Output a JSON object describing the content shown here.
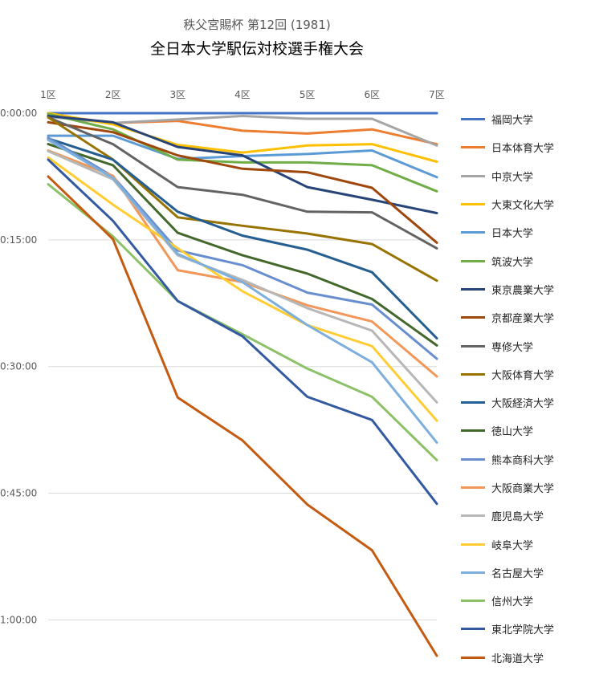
{
  "chart_data": {
    "type": "line",
    "title": "全日本大学駅伝対校選手権大会",
    "subtitle": "秩父宮賜杯 第12回 (1981)",
    "x": [
      "1区",
      "2区",
      "3区",
      "4区",
      "5区",
      "6区",
      "7区"
    ],
    "y_ticks": [
      "0:00:00",
      "0:15:00",
      "0:30:00",
      "0:45:00",
      "1:00:00"
    ],
    "ylim_seconds": [
      0,
      3900
    ],
    "y_inverted": true,
    "grid": true,
    "legend": "right",
    "series": [
      {
        "name": "福岡大学",
        "color": "#4472C4",
        "values": [
          0,
          0,
          0,
          0,
          0,
          0,
          0
        ]
      },
      {
        "name": "日本体育大学",
        "color": "#ED7D31",
        "values": [
          8,
          70,
          55,
          125,
          145,
          115,
          220
        ]
      },
      {
        "name": "中京大学",
        "color": "#A5A5A5",
        "values": [
          25,
          70,
          45,
          20,
          40,
          40,
          230
        ]
      },
      {
        "name": "大東文化大学",
        "color": "#FFC000",
        "values": [
          0,
          80,
          225,
          280,
          230,
          220,
          345
        ]
      },
      {
        "name": "日本大学",
        "color": "#5B9BD5",
        "values": [
          160,
          160,
          325,
          305,
          290,
          265,
          455
        ]
      },
      {
        "name": "筑波大学",
        "color": "#70AD47",
        "values": [
          5,
          115,
          330,
          350,
          350,
          370,
          555
        ]
      },
      {
        "name": "東京農業大学",
        "color": "#264478",
        "values": [
          20,
          65,
          240,
          300,
          525,
          615,
          710
        ]
      },
      {
        "name": "京都産業大学",
        "color": "#9E480E",
        "values": [
          65,
          135,
          300,
          395,
          420,
          530,
          920
        ]
      },
      {
        "name": "専修大学",
        "color": "#636363",
        "values": [
          30,
          220,
          525,
          580,
          700,
          705,
          960
        ]
      },
      {
        "name": "大阪体育大学",
        "color": "#997300",
        "values": [
          30,
          330,
          740,
          800,
          855,
          930,
          1190
        ]
      },
      {
        "name": "大阪経済大学",
        "color": "#255E91",
        "values": [
          180,
          330,
          700,
          870,
          970,
          1130,
          1600
        ]
      },
      {
        "name": "徳山大学",
        "color": "#43682B",
        "values": [
          220,
          370,
          850,
          1010,
          1140,
          1320,
          1650
        ]
      },
      {
        "name": "熊本商科大学",
        "color": "#698ED0",
        "values": [
          175,
          450,
          975,
          1080,
          1275,
          1360,
          1745
        ]
      },
      {
        "name": "大阪商業大学",
        "color": "#F1975A",
        "values": [
          265,
          445,
          1115,
          1200,
          1365,
          1480,
          1870
        ]
      },
      {
        "name": "鹿児島大学",
        "color": "#B7B7B7",
        "values": [
          270,
          470,
          1010,
          1185,
          1385,
          1545,
          2055
        ]
      },
      {
        "name": "岐阜大学",
        "color": "#FFCD33",
        "values": [
          315,
          650,
          960,
          1265,
          1505,
          1655,
          2185
        ]
      },
      {
        "name": "名古屋大学",
        "color": "#7CAFDD",
        "values": [
          190,
          460,
          1000,
          1200,
          1505,
          1770,
          2340
        ]
      },
      {
        "name": "信州大学",
        "color": "#8CC168",
        "values": [
          505,
          875,
          1335,
          1570,
          1815,
          2015,
          2465
        ]
      },
      {
        "name": "東北学院大学",
        "color": "#335AA1",
        "values": [
          330,
          765,
          1335,
          1585,
          2015,
          2180,
          2775
        ]
      },
      {
        "name": "北海道大学",
        "color": "#C55A11",
        "values": [
          450,
          895,
          2020,
          2325,
          2780,
          3105,
          3855
        ]
      }
    ]
  }
}
